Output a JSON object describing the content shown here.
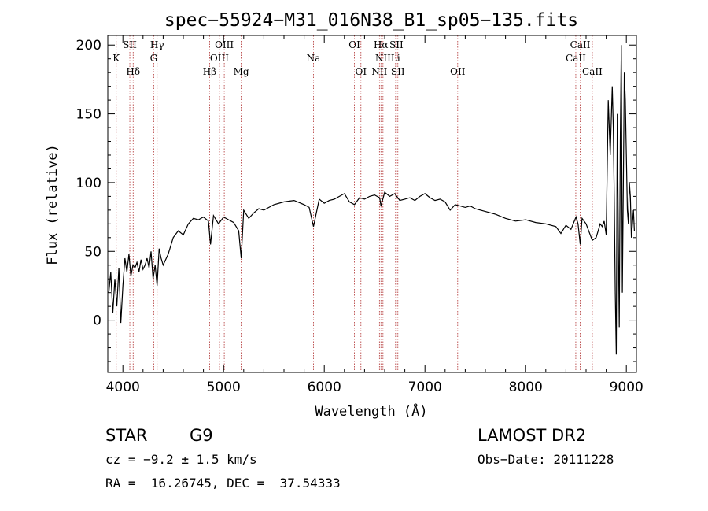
{
  "chart_data": {
    "type": "line",
    "title": "spec−55924−M31_016N38_B1_sp05−135.fits",
    "xlabel": "Wavelength (Å)",
    "ylabel": "Flux (relative)",
    "xlim": [
      3850,
      9100
    ],
    "ylim": [
      -38,
      207
    ],
    "xticks": [
      4000,
      5000,
      6000,
      7000,
      8000,
      9000
    ],
    "yticks": [
      0,
      50,
      100,
      150,
      200
    ],
    "grid": false,
    "series": [
      {
        "x": [
          3860,
          3880,
          3900,
          3920,
          3940,
          3960,
          3980,
          4000,
          4020,
          4040,
          4060,
          4080,
          4100,
          4120,
          4140,
          4160,
          4180,
          4200,
          4220,
          4240,
          4260,
          4280,
          4300,
          4320,
          4340,
          4360,
          4380,
          4400,
          4450,
          4500,
          4550,
          4600,
          4650,
          4700,
          4750,
          4800,
          4850,
          4870,
          4900,
          4950,
          5000,
          5050,
          5100,
          5150,
          5175,
          5200,
          5250,
          5300,
          5350,
          5400,
          5500,
          5600,
          5700,
          5800,
          5850,
          5893,
          5950,
          6000,
          6050,
          6100,
          6150,
          6200,
          6250,
          6300,
          6350,
          6400,
          6450,
          6500,
          6550,
          6563,
          6600,
          6650,
          6700,
          6750,
          6800,
          6850,
          6900,
          6950,
          7000,
          7050,
          7100,
          7150,
          7200,
          7250,
          7300,
          7350,
          7400,
          7450,
          7500,
          7600,
          7700,
          7800,
          7900,
          8000,
          8100,
          8200,
          8300,
          8350,
          8400,
          8450,
          8500,
          8520,
          8542,
          8560,
          8600,
          8662,
          8700,
          8720,
          8740,
          8760,
          8780,
          8800,
          8820,
          8840,
          8860,
          8870,
          8880,
          8890,
          8900,
          8910,
          8920,
          8930,
          8940,
          8950,
          8960,
          8970,
          8980,
          8990,
          9000,
          9010,
          9020,
          9030,
          9040,
          9050,
          9060,
          9070,
          9080
        ],
        "y": [
          20,
          35,
          5,
          30,
          10,
          38,
          -2,
          25,
          45,
          35,
          48,
          32,
          40,
          38,
          42,
          35,
          44,
          37,
          40,
          45,
          38,
          50,
          30,
          40,
          25,
          52,
          45,
          40,
          48,
          60,
          65,
          62,
          70,
          74,
          73,
          75,
          72,
          55,
          76,
          70,
          75,
          73,
          71,
          65,
          45,
          80,
          74,
          78,
          81,
          80,
          84,
          86,
          87,
          84,
          82,
          68,
          88,
          85,
          87,
          88,
          90,
          92,
          86,
          84,
          89,
          88,
          90,
          91,
          89,
          83,
          93,
          90,
          92,
          87,
          88,
          89,
          87,
          90,
          92,
          89,
          87,
          88,
          86,
          80,
          84,
          83,
          82,
          83,
          81,
          79,
          77,
          74,
          72,
          73,
          71,
          70,
          68,
          63,
          69,
          66,
          75,
          70,
          55,
          74,
          70,
          58,
          60,
          65,
          70,
          68,
          72,
          62,
          160,
          120,
          170,
          140,
          90,
          20,
          -25,
          150,
          60,
          -5,
          130,
          200,
          20,
          100,
          180,
          160,
          120,
          80,
          70,
          100,
          90,
          60,
          70,
          80,
          65
        ]
      }
    ],
    "spectral_lines": [
      {
        "label": "K",
        "x": 3934,
        "row": 1
      },
      {
        "label": "SII",
        "x": 4069,
        "row": 0
      },
      {
        "label": "Hδ",
        "x": 4102,
        "row": 2
      },
      {
        "label": "Hγ",
        "x": 4340,
        "row": 0
      },
      {
        "label": "G",
        "x": 4306,
        "row": 1
      },
      {
        "label": "OIII",
        "x": 5007,
        "row": 0
      },
      {
        "label": "OIII",
        "x": 4959,
        "row": 1
      },
      {
        "label": "Hβ",
        "x": 4861,
        "row": 2
      },
      {
        "label": "Mg",
        "x": 5175,
        "row": 2
      },
      {
        "label": "Na",
        "x": 5893,
        "row": 1
      },
      {
        "label": "OI",
        "x": 6300,
        "row": 0
      },
      {
        "label": "OI",
        "x": 6364,
        "row": 2
      },
      {
        "label": "Hα",
        "x": 6563,
        "row": 0
      },
      {
        "label": "SII",
        "x": 6716,
        "row": 0
      },
      {
        "label": "NII",
        "x": 6583,
        "row": 1
      },
      {
        "label": "Li",
        "x": 6708,
        "row": 1
      },
      {
        "label": "NII",
        "x": 6548,
        "row": 2
      },
      {
        "label": "SII",
        "x": 6731,
        "row": 2
      },
      {
        "label": "OII",
        "x": 7325,
        "row": 2
      },
      {
        "label": "CaII",
        "x": 8542,
        "row": 0
      },
      {
        "label": "CaII",
        "x": 8498,
        "row": 1
      },
      {
        "label": "CaII",
        "x": 8662,
        "row": 2
      }
    ]
  },
  "info": {
    "object_type": "STAR",
    "subclass": "G9",
    "survey": "LAMOST DR2",
    "cz": "cz = −9.2 ± 1.5 km/s",
    "obs_date": "Obs−Date: 20111228",
    "coords": "RA =  16.26745, DEC =  37.54333"
  },
  "colors": {
    "spectrum": "#000000",
    "line_markers": "#b03030",
    "axes": "#000000"
  }
}
